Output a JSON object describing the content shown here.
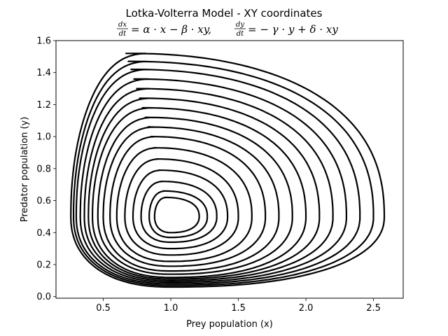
{
  "chart_data": {
    "type": "line",
    "title": "Lotka-Volterra Model - XY coordinates",
    "subtitle": {
      "left_num": "dx",
      "left_den": "dt",
      "left_rhs": "= α · x − β · xy,",
      "right_num": "dy",
      "right_den": "dt",
      "right_rhs": "= − γ · y + δ · xy"
    },
    "xlabel": "Prey population (x)",
    "ylabel": "Predator population (y)",
    "xlim": [
      0.15,
      2.72
    ],
    "ylim": [
      -0.01,
      1.6
    ],
    "xticks": [
      0.5,
      1.0,
      1.5,
      2.0,
      2.5
    ],
    "xtick_labels": [
      "0.5",
      "1.0",
      "1.5",
      "2.0",
      "2.5"
    ],
    "yticks": [
      0.0,
      0.2,
      0.4,
      0.6,
      0.8,
      1.0,
      1.2,
      1.4,
      1.6
    ],
    "ytick_labels": [
      "0.0",
      "0.2",
      "0.4",
      "0.6",
      "0.8",
      "1.0",
      "1.2",
      "1.4",
      "1.6"
    ],
    "grid": false,
    "series": [
      {
        "color": "#000000",
        "orbit_extents": [
          {
            "x_min": 0.26,
            "x_max": 2.58,
            "y_min": 0.06,
            "y_max": 1.52
          },
          {
            "x_min": 0.28,
            "x_max": 2.5,
            "y_min": 0.07,
            "y_max": 1.47
          },
          {
            "x_min": 0.3,
            "x_max": 2.4,
            "y_min": 0.08,
            "y_max": 1.42
          },
          {
            "x_min": 0.33,
            "x_max": 2.3,
            "y_min": 0.09,
            "y_max": 1.36
          },
          {
            "x_min": 0.36,
            "x_max": 2.2,
            "y_min": 0.1,
            "y_max": 1.3
          },
          {
            "x_min": 0.39,
            "x_max": 2.1,
            "y_min": 0.11,
            "y_max": 1.24
          },
          {
            "x_min": 0.42,
            "x_max": 2.0,
            "y_min": 0.12,
            "y_max": 1.18
          },
          {
            "x_min": 0.46,
            "x_max": 1.9,
            "y_min": 0.14,
            "y_max": 1.12
          },
          {
            "x_min": 0.5,
            "x_max": 1.8,
            "y_min": 0.16,
            "y_max": 1.06
          },
          {
            "x_min": 0.55,
            "x_max": 1.7,
            "y_min": 0.19,
            "y_max": 1.0
          },
          {
            "x_min": 0.6,
            "x_max": 1.6,
            "y_min": 0.22,
            "y_max": 0.93
          },
          {
            "x_min": 0.66,
            "x_max": 1.5,
            "y_min": 0.26,
            "y_max": 0.86
          },
          {
            "x_min": 0.72,
            "x_max": 1.42,
            "y_min": 0.3,
            "y_max": 0.79
          },
          {
            "x_min": 0.78,
            "x_max": 1.34,
            "y_min": 0.34,
            "y_max": 0.72
          },
          {
            "x_min": 0.84,
            "x_max": 1.27,
            "y_min": 0.37,
            "y_max": 0.66
          },
          {
            "x_min": 0.88,
            "x_max": 1.21,
            "y_min": 0.4,
            "y_max": 0.62
          }
        ]
      }
    ]
  }
}
